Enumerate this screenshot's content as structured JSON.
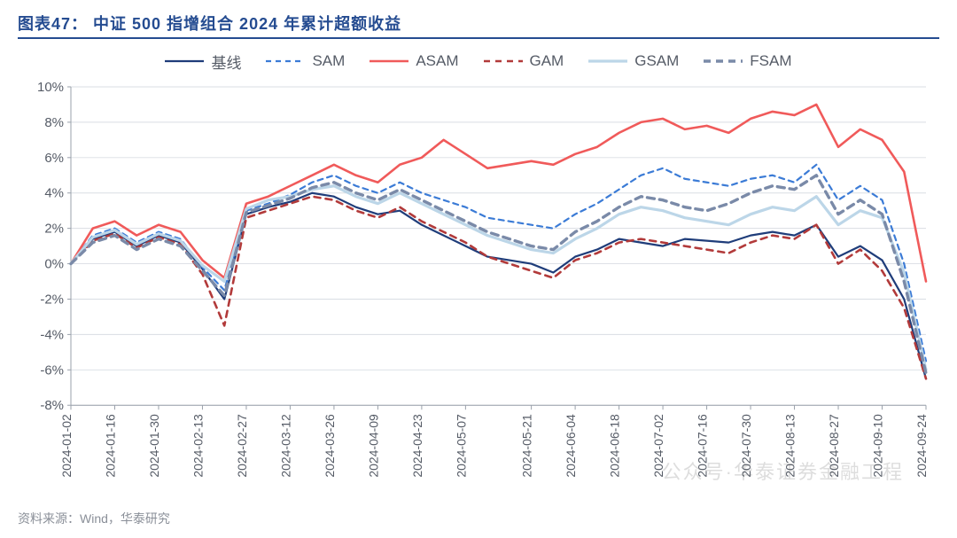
{
  "header": {
    "title": "图表47：  中证 500 指增组合 2024 年累计超额收益"
  },
  "footer": {
    "source_label": "资料来源：Wind，华泰研究"
  },
  "watermark": "公众号·华泰证券金融工程",
  "chart": {
    "type": "line",
    "background_color": "#ffffff",
    "grid_color": "#d9dde3",
    "axis_color": "#9aa1ab",
    "title_border_color": "#254c91",
    "y_axis": {
      "min": -8,
      "max": 10,
      "tick_step": 2,
      "ticks": [
        -8,
        -6,
        -4,
        -2,
        0,
        2,
        4,
        6,
        8,
        10
      ],
      "tick_labels": [
        "-8%",
        "-6%",
        "-4%",
        "-2%",
        "0%",
        "2%",
        "4%",
        "6%",
        "8%",
        "10%"
      ],
      "label_fontsize": 15,
      "label_color": "#555b66"
    },
    "x_axis": {
      "tick_labels": [
        "2024-01-02",
        "2024-01-16",
        "2024-01-30",
        "2024-02-13",
        "2024-02-27",
        "2024-03-12",
        "2024-03-26",
        "2024-04-09",
        "2024-04-23",
        "2024-05-07",
        "2024-05-21",
        "2024-06-04",
        "2024-06-18",
        "2024-07-02",
        "2024-07-16",
        "2024-07-30",
        "2024-08-13",
        "2024-08-27",
        "2024-09-10",
        "2024-09-24"
      ],
      "label_fontsize": 14,
      "label_color": "#555b66",
      "rotation": -90
    },
    "legend": {
      "position": "top-center",
      "fontsize": 17,
      "items": [
        {
          "key": "baseline",
          "label": "基线",
          "color": "#1f3d7a",
          "dash": "none",
          "width": 2.2
        },
        {
          "key": "sam",
          "label": "SAM",
          "color": "#3b7bd6",
          "dash": "6,5",
          "width": 2.2
        },
        {
          "key": "asam",
          "label": "ASAM",
          "color": "#f05a5a",
          "dash": "none",
          "width": 2.6
        },
        {
          "key": "gam",
          "label": "GAM",
          "color": "#b23a3a",
          "dash": "7,6",
          "width": 2.6
        },
        {
          "key": "gsam",
          "label": "GSAM",
          "color": "#bcd6e8",
          "dash": "none",
          "width": 3.2
        },
        {
          "key": "fsam",
          "label": "FSAM",
          "color": "#7a8aa8",
          "dash": "8,6",
          "width": 3.4
        }
      ]
    },
    "series": {
      "n_points": 40,
      "baseline": [
        0.0,
        1.4,
        1.8,
        1.0,
        1.6,
        1.2,
        -0.3,
        -2.0,
        2.8,
        3.2,
        3.5,
        4.0,
        3.8,
        3.2,
        2.8,
        3.0,
        2.2,
        1.6,
        1.0,
        0.4,
        0.2,
        0.0,
        -0.5,
        0.4,
        0.8,
        1.4,
        1.2,
        1.0,
        1.4,
        1.3,
        1.2,
        1.6,
        1.8,
        1.6,
        2.2,
        0.4,
        1.0,
        0.2,
        -2.0,
        -6.5
      ],
      "sam": [
        0.0,
        1.6,
        2.0,
        1.2,
        1.8,
        1.4,
        -0.2,
        -1.5,
        3.0,
        3.4,
        3.9,
        4.6,
        5.0,
        4.4,
        4.0,
        4.6,
        4.0,
        3.6,
        3.2,
        2.6,
        2.4,
        2.2,
        2.0,
        2.8,
        3.4,
        4.2,
        5.0,
        5.4,
        4.8,
        4.6,
        4.4,
        4.8,
        5.0,
        4.6,
        5.6,
        3.6,
        4.4,
        3.6,
        0.0,
        -5.5
      ],
      "asam": [
        0.0,
        2.0,
        2.4,
        1.6,
        2.2,
        1.8,
        0.2,
        -0.8,
        3.4,
        3.8,
        4.4,
        5.0,
        5.6,
        5.0,
        4.6,
        5.6,
        6.0,
        7.0,
        6.2,
        5.4,
        5.6,
        5.8,
        5.6,
        6.2,
        6.6,
        7.4,
        8.0,
        8.2,
        7.6,
        7.8,
        7.4,
        8.2,
        8.6,
        8.4,
        9.0,
        6.6,
        7.6,
        7.0,
        5.2,
        -1.0
      ],
      "gam": [
        0.0,
        1.3,
        1.7,
        0.9,
        1.5,
        1.1,
        -0.6,
        -3.5,
        2.6,
        3.0,
        3.4,
        3.8,
        3.6,
        3.0,
        2.6,
        3.2,
        2.4,
        1.8,
        1.2,
        0.4,
        0.0,
        -0.4,
        -0.8,
        0.2,
        0.6,
        1.2,
        1.4,
        1.2,
        1.0,
        0.8,
        0.6,
        1.2,
        1.6,
        1.4,
        2.2,
        0.0,
        0.8,
        -0.4,
        -2.5,
        -6.5
      ],
      "gsam": [
        0.0,
        1.5,
        1.9,
        1.1,
        1.7,
        1.3,
        -0.1,
        -1.0,
        3.1,
        3.6,
        3.8,
        4.2,
        4.4,
        3.8,
        3.4,
        4.0,
        3.4,
        2.8,
        2.2,
        1.6,
        1.2,
        0.8,
        0.6,
        1.4,
        2.0,
        2.8,
        3.2,
        3.0,
        2.6,
        2.4,
        2.2,
        2.8,
        3.2,
        3.0,
        3.8,
        2.2,
        3.0,
        2.6,
        -0.5,
        -6.0
      ],
      "fsam": [
        0.0,
        1.2,
        1.6,
        0.8,
        1.4,
        1.0,
        -0.4,
        -1.8,
        2.9,
        3.3,
        3.7,
        4.3,
        4.6,
        4.0,
        3.6,
        4.2,
        3.6,
        3.0,
        2.4,
        1.8,
        1.4,
        1.0,
        0.8,
        1.8,
        2.4,
        3.2,
        3.8,
        3.6,
        3.2,
        3.0,
        3.4,
        4.0,
        4.4,
        4.2,
        5.0,
        2.8,
        3.6,
        2.8,
        -1.0,
        -6.2
      ]
    }
  }
}
